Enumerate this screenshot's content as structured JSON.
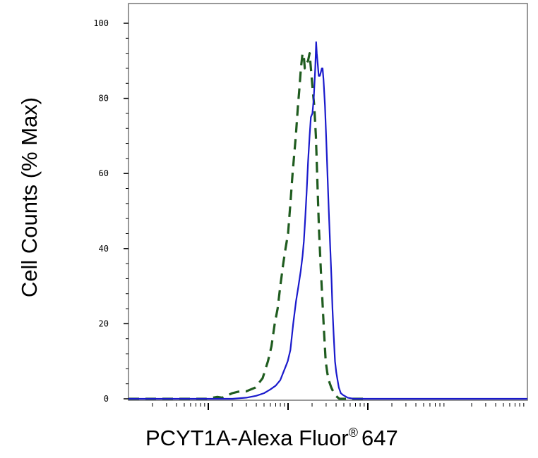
{
  "chart_data": {
    "type": "line",
    "xlabel": "PCYT1A-Alexa Fluor",
    "xlabel_superscript": "®",
    "xlabel_suffix": "647",
    "ylabel": "Cell Counts (% Max)",
    "x_scale": "log",
    "xlim": [
      10,
      1000000
    ],
    "ylim": [
      0,
      100
    ],
    "yticks": [
      0,
      20,
      40,
      60,
      80,
      100
    ],
    "ytick_labels": [
      "0",
      "20",
      "40",
      "60",
      "80",
      "100"
    ],
    "xticks_major": [
      100,
      1000,
      10000
    ],
    "grid": false,
    "legend": "none",
    "series": [
      {
        "style": "dashed",
        "color": "#1f5c1f",
        "points": [
          [
            10,
            0
          ],
          [
            95,
            0
          ],
          [
            130,
            0.5
          ],
          [
            150,
            0.3
          ],
          [
            200,
            1.5
          ],
          [
            250,
            2
          ],
          [
            300,
            2
          ],
          [
            390,
            3
          ],
          [
            480,
            5.5
          ],
          [
            560,
            10
          ],
          [
            620,
            14
          ],
          [
            680,
            20
          ],
          [
            740,
            24
          ],
          [
            800,
            30
          ],
          [
            870,
            36
          ],
          [
            930,
            40
          ],
          [
            1000,
            44
          ],
          [
            1070,
            52
          ],
          [
            1140,
            60
          ],
          [
            1250,
            70
          ],
          [
            1330,
            78
          ],
          [
            1380,
            82
          ],
          [
            1450,
            88
          ],
          [
            1520,
            92
          ],
          [
            1580,
            91
          ],
          [
            1620,
            88
          ],
          [
            1680,
            89
          ],
          [
            1780,
            90
          ],
          [
            1860,
            92
          ],
          [
            1950,
            87
          ],
          [
            2040,
            82
          ],
          [
            2130,
            78
          ],
          [
            2230,
            70
          ],
          [
            2330,
            58
          ],
          [
            2440,
            45
          ],
          [
            2580,
            34
          ],
          [
            2700,
            26
          ],
          [
            2820,
            18
          ],
          [
            2960,
            10
          ],
          [
            3100,
            7
          ],
          [
            3230,
            5
          ],
          [
            3480,
            3
          ],
          [
            3860,
            1
          ],
          [
            4400,
            0
          ],
          [
            10000,
            0
          ]
        ]
      },
      {
        "style": "solid",
        "color": "#1a1acc",
        "points": [
          [
            10,
            0
          ],
          [
            100,
            0
          ],
          [
            200,
            0
          ],
          [
            300,
            0.3
          ],
          [
            400,
            0.8
          ],
          [
            500,
            1.5
          ],
          [
            600,
            2.5
          ],
          [
            700,
            3.5
          ],
          [
            800,
            5
          ],
          [
            870,
            7
          ],
          [
            930,
            8.5
          ],
          [
            990,
            10
          ],
          [
            1070,
            13
          ],
          [
            1160,
            20
          ],
          [
            1260,
            26
          ],
          [
            1350,
            30
          ],
          [
            1440,
            34
          ],
          [
            1520,
            38
          ],
          [
            1580,
            42
          ],
          [
            1640,
            48
          ],
          [
            1710,
            55
          ],
          [
            1780,
            63
          ],
          [
            1860,
            70
          ],
          [
            1930,
            75
          ],
          [
            2020,
            76
          ],
          [
            2100,
            80
          ],
          [
            2190,
            88
          ],
          [
            2250,
            95
          ],
          [
            2290,
            92
          ],
          [
            2360,
            89
          ],
          [
            2420,
            86
          ],
          [
            2500,
            86
          ],
          [
            2580,
            87
          ],
          [
            2650,
            88
          ],
          [
            2710,
            88
          ],
          [
            2780,
            85
          ],
          [
            2900,
            78
          ],
          [
            3000,
            70
          ],
          [
            3120,
            60
          ],
          [
            3240,
            50
          ],
          [
            3380,
            40
          ],
          [
            3500,
            32
          ],
          [
            3600,
            24
          ],
          [
            3730,
            17
          ],
          [
            3880,
            10
          ],
          [
            4020,
            7
          ],
          [
            4170,
            5
          ],
          [
            4330,
            3
          ],
          [
            4580,
            1.5
          ],
          [
            4900,
            1
          ],
          [
            5600,
            0.3
          ],
          [
            6700,
            0
          ],
          [
            10000,
            0
          ],
          [
            100000,
            0
          ],
          [
            1000000,
            0
          ]
        ]
      }
    ]
  }
}
